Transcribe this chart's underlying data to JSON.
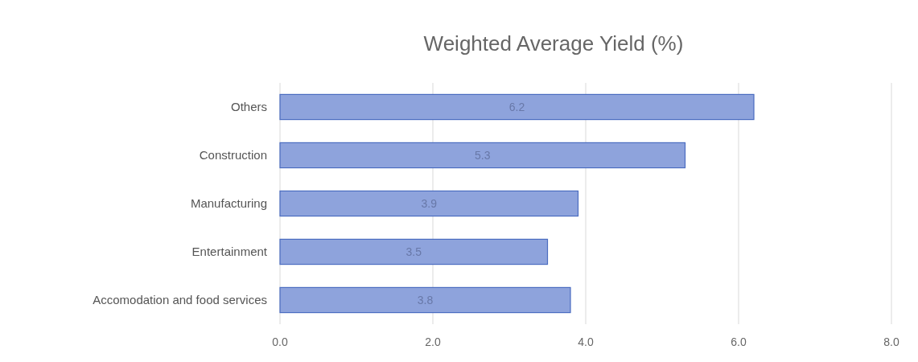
{
  "chart_data": {
    "type": "bar",
    "title": "Weighted Average Yield (%)",
    "orientation": "horizontal",
    "categories": [
      "Others",
      "Construction",
      "Manufacturing",
      "Entertainment",
      "Accomodation and food services"
    ],
    "values": [
      6.2,
      5.3,
      3.9,
      3.5,
      3.8
    ],
    "color": "#8ea3dc",
    "xlim": [
      0,
      8
    ],
    "xticks": [
      {
        "value": 0,
        "label": "0.0"
      },
      {
        "value": 2,
        "label": "2.0"
      },
      {
        "value": 4,
        "label": "4.0"
      },
      {
        "value": 6,
        "label": "6.0"
      },
      {
        "value": 8,
        "label": "8.0"
      }
    ],
    "grid": "x",
    "data_labels": true
  }
}
